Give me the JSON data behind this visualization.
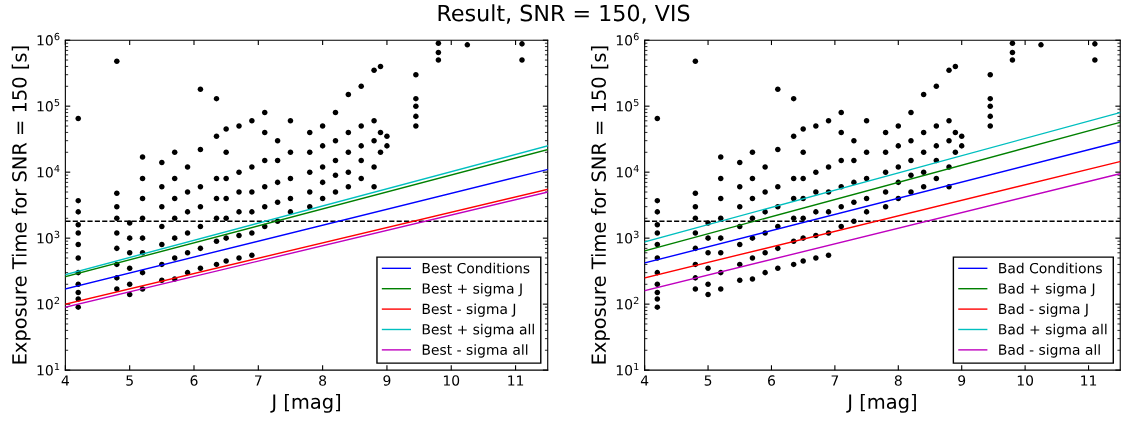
{
  "chart_data": [
    {
      "type": "scatter",
      "title": "Result, SNR = 150, VIS",
      "xlabel": "J [mag]",
      "ylabel": "Exposure Time for SNR = 150 [s]",
      "log": "y",
      "xlim": [
        4,
        11.5
      ],
      "ylim": [
        10,
        1000000
      ],
      "xticks": [
        4,
        5,
        6,
        7,
        8,
        9,
        10,
        11
      ],
      "yticks": [
        {
          "value": 10,
          "label": "10$^{1}$"
        },
        {
          "value": 100,
          "label": "10$^{2}$"
        },
        {
          "value": 1000,
          "label": "10$^{3}$"
        },
        {
          "value": 10000,
          "label": "10$^{4}$"
        },
        {
          "value": 100000,
          "label": "10$^{5}$"
        },
        {
          "value": 1000000,
          "label": "10$^{6}$"
        }
      ],
      "grid": false,
      "legend": "bottom right",
      "ref_lines": [
        {
          "axis": "y",
          "value": 1800,
          "color": "#000000",
          "line_style": "dashed"
        }
      ],
      "series": [
        {
          "type": "scatter",
          "color": "#000000",
          "marker": "circle",
          "x": [
            4.2,
            4.2,
            4.2,
            4.2,
            4.2,
            4.2,
            4.2,
            4.2,
            4.2,
            4.2,
            4.2,
            4.2,
            4.8,
            4.8,
            4.8,
            4.8,
            4.8,
            4.8,
            4.8,
            4.8,
            4.8,
            5.0,
            5.0,
            5.0,
            5.0,
            5.0,
            5.0,
            5.2,
            5.2,
            5.2,
            5.2,
            5.2,
            5.2,
            5.2,
            5.2,
            5.5,
            5.5,
            5.5,
            5.5,
            5.5,
            5.5,
            5.5,
            5.7,
            5.7,
            5.7,
            5.7,
            5.7,
            5.7,
            5.7,
            5.9,
            5.9,
            5.9,
            5.9,
            5.9,
            5.9,
            6.1,
            6.1,
            6.1,
            6.1,
            6.1,
            6.1,
            6.1,
            6.35,
            6.35,
            6.35,
            6.35,
            6.35,
            6.35,
            6.35,
            6.5,
            6.5,
            6.5,
            6.5,
            6.5,
            6.5,
            6.5,
            6.7,
            6.7,
            6.7,
            6.7,
            6.7,
            6.7,
            6.9,
            6.9,
            6.9,
            6.9,
            6.9,
            6.9,
            7.1,
            7.1,
            7.1,
            7.1,
            7.1,
            7.1,
            7.3,
            7.3,
            7.3,
            7.3,
            7.3,
            7.5,
            7.5,
            7.5,
            7.5,
            7.5,
            7.8,
            7.8,
            7.8,
            7.8,
            7.8,
            8.0,
            8.0,
            8.0,
            8.0,
            8.0,
            8.2,
            8.2,
            8.2,
            8.2,
            8.2,
            8.4,
            8.4,
            8.4,
            8.4,
            8.4,
            8.6,
            8.6,
            8.6,
            8.6,
            8.6,
            8.8,
            8.8,
            8.8,
            8.8,
            8.8,
            8.9,
            8.9,
            8.9,
            9.0,
            9.0,
            9.45,
            9.45,
            9.45,
            9.45,
            9.45,
            9.8,
            9.8,
            9.8,
            10.25,
            11.1,
            11.1
          ],
          "values": [
            90,
            120,
            150,
            200,
            300,
            500,
            800,
            1200,
            1600,
            2500,
            3700,
            65000,
            170,
            250,
            400,
            700,
            1200,
            2000,
            3000,
            4800,
            480000,
            140,
            200,
            350,
            600,
            1000,
            1700,
            170,
            300,
            600,
            1000,
            2000,
            4000,
            8000,
            17000,
            230,
            400,
            800,
            1500,
            3000,
            6000,
            14000,
            240,
            500,
            1000,
            2000,
            4000,
            8000,
            20000,
            300,
            600,
            1200,
            2500,
            5000,
            12000,
            350,
            700,
            1500,
            3000,
            6000,
            22000,
            180000,
            130000,
            400,
            900,
            2000,
            4000,
            8000,
            35000,
            450,
            1000,
            2000,
            4000,
            8000,
            20000,
            45000,
            500,
            1100,
            2500,
            5000,
            10000,
            50000,
            550,
            1200,
            2500,
            5000,
            12000,
            60000,
            1500,
            3000,
            6000,
            15000,
            40000,
            80000,
            1800,
            3500,
            7000,
            15000,
            30000,
            2500,
            4000,
            8000,
            20000,
            60000,
            3000,
            5000,
            10000,
            20000,
            40000,
            4000,
            7000,
            12000,
            25000,
            50000,
            5000,
            9000,
            15000,
            30000,
            80000,
            6000,
            10000,
            20000,
            40000,
            150000,
            8000,
            15000,
            25000,
            50000,
            200000,
            6000,
            12000,
            30000,
            60000,
            350000,
            20000,
            40000,
            400000,
            25000,
            35000,
            50000,
            70000,
            100000,
            130000,
            300000,
            500000,
            650000,
            900000,
            850000,
            500000,
            880000
          ]
        },
        {
          "type": "line",
          "name": "Best Conditions",
          "color": "#0000ff",
          "x": [
            4,
            11.5
          ],
          "values": [
            170,
            11000
          ]
        },
        {
          "type": "line",
          "name": "Best + sigma J",
          "color": "#008000",
          "x": [
            4,
            11.5
          ],
          "values": [
            260,
            22000
          ]
        },
        {
          "type": "line",
          "name": "Best - sigma J",
          "color": "#ff0000",
          "x": [
            4,
            11.5
          ],
          "values": [
            100,
            5500
          ]
        },
        {
          "type": "line",
          "name": "Best + sigma all",
          "color": "#00bfbf",
          "x": [
            4,
            11.5
          ],
          "values": [
            280,
            25000
          ]
        },
        {
          "type": "line",
          "name": "Best - sigma all",
          "color": "#bf00bf",
          "x": [
            4,
            11.5
          ],
          "values": [
            90,
            5000
          ]
        }
      ]
    },
    {
      "type": "scatter",
      "xlabel": "J [mag]",
      "ylabel": "Exposure Time for SNR = 150 [s]",
      "log": "y",
      "xlim": [
        4,
        11.5
      ],
      "ylim": [
        10,
        1000000
      ],
      "xticks": [
        4,
        5,
        6,
        7,
        8,
        9,
        10,
        11
      ],
      "yticks": [
        {
          "value": 10,
          "label": "10$^{1}$"
        },
        {
          "value": 100,
          "label": "10$^{2}$"
        },
        {
          "value": 1000,
          "label": "10$^{3}$"
        },
        {
          "value": 10000,
          "label": "10$^{4}$"
        },
        {
          "value": 100000,
          "label": "10$^{5}$"
        },
        {
          "value": 1000000,
          "label": "10$^{6}$"
        }
      ],
      "grid": false,
      "legend": "bottom right",
      "ref_lines": [
        {
          "axis": "y",
          "value": 1800,
          "color": "#000000",
          "line_style": "dashed"
        }
      ],
      "series": [
        {
          "type": "scatter",
          "color": "#000000",
          "marker": "circle",
          "x": [
            4.2,
            4.2,
            4.2,
            4.2,
            4.2,
            4.2,
            4.2,
            4.2,
            4.2,
            4.2,
            4.2,
            4.2,
            4.8,
            4.8,
            4.8,
            4.8,
            4.8,
            4.8,
            4.8,
            4.8,
            4.8,
            5.0,
            5.0,
            5.0,
            5.0,
            5.0,
            5.0,
            5.2,
            5.2,
            5.2,
            5.2,
            5.2,
            5.2,
            5.2,
            5.2,
            5.5,
            5.5,
            5.5,
            5.5,
            5.5,
            5.5,
            5.5,
            5.7,
            5.7,
            5.7,
            5.7,
            5.7,
            5.7,
            5.7,
            5.9,
            5.9,
            5.9,
            5.9,
            5.9,
            5.9,
            6.1,
            6.1,
            6.1,
            6.1,
            6.1,
            6.1,
            6.1,
            6.35,
            6.35,
            6.35,
            6.35,
            6.35,
            6.35,
            6.35,
            6.5,
            6.5,
            6.5,
            6.5,
            6.5,
            6.5,
            6.5,
            6.7,
            6.7,
            6.7,
            6.7,
            6.7,
            6.7,
            6.9,
            6.9,
            6.9,
            6.9,
            6.9,
            6.9,
            7.1,
            7.1,
            7.1,
            7.1,
            7.1,
            7.1,
            7.3,
            7.3,
            7.3,
            7.3,
            7.3,
            7.5,
            7.5,
            7.5,
            7.5,
            7.5,
            7.8,
            7.8,
            7.8,
            7.8,
            7.8,
            8.0,
            8.0,
            8.0,
            8.0,
            8.0,
            8.2,
            8.2,
            8.2,
            8.2,
            8.2,
            8.4,
            8.4,
            8.4,
            8.4,
            8.4,
            8.6,
            8.6,
            8.6,
            8.6,
            8.6,
            8.8,
            8.8,
            8.8,
            8.8,
            8.8,
            8.9,
            8.9,
            8.9,
            9.0,
            9.0,
            9.45,
            9.45,
            9.45,
            9.45,
            9.45,
            9.8,
            9.8,
            9.8,
            10.25,
            11.1,
            11.1
          ],
          "values": [
            90,
            120,
            150,
            200,
            300,
            500,
            800,
            1200,
            1600,
            2500,
            3700,
            65000,
            170,
            250,
            400,
            700,
            1200,
            2000,
            3000,
            4800,
            480000,
            140,
            200,
            350,
            600,
            1000,
            1700,
            170,
            300,
            600,
            1000,
            2000,
            4000,
            8000,
            17000,
            230,
            400,
            800,
            1500,
            3000,
            6000,
            14000,
            240,
            500,
            1000,
            2000,
            4000,
            8000,
            20000,
            300,
            600,
            1200,
            2500,
            5000,
            12000,
            350,
            700,
            1500,
            3000,
            6000,
            22000,
            180000,
            130000,
            400,
            900,
            2000,
            4000,
            8000,
            35000,
            450,
            1000,
            2000,
            4000,
            8000,
            20000,
            45000,
            500,
            1100,
            2500,
            5000,
            10000,
            50000,
            550,
            1200,
            2500,
            5000,
            12000,
            60000,
            1500,
            3000,
            6000,
            15000,
            40000,
            80000,
            1800,
            3500,
            7000,
            15000,
            30000,
            2500,
            4000,
            8000,
            20000,
            60000,
            3000,
            5000,
            10000,
            20000,
            40000,
            4000,
            7000,
            12000,
            25000,
            50000,
            5000,
            9000,
            15000,
            30000,
            80000,
            6000,
            10000,
            20000,
            40000,
            150000,
            8000,
            15000,
            25000,
            50000,
            200000,
            6000,
            12000,
            30000,
            60000,
            350000,
            20000,
            40000,
            400000,
            25000,
            35000,
            50000,
            70000,
            100000,
            130000,
            300000,
            500000,
            650000,
            900000,
            850000,
            500000,
            880000
          ]
        },
        {
          "type": "line",
          "name": "Bad Conditions",
          "color": "#0000ff",
          "x": [
            4,
            11.5
          ],
          "values": [
            420,
            29000
          ]
        },
        {
          "type": "line",
          "name": "Bad + sigma J",
          "color": "#008000",
          "x": [
            4,
            11.5
          ],
          "values": [
            640,
            57000
          ]
        },
        {
          "type": "line",
          "name": "Bad - sigma J",
          "color": "#ff0000",
          "x": [
            4,
            11.5
          ],
          "values": [
            250,
            14500
          ]
        },
        {
          "type": "line",
          "name": "Bad + sigma all",
          "color": "#00bfbf",
          "x": [
            4,
            11.5
          ],
          "values": [
            880,
            80000
          ]
        },
        {
          "type": "line",
          "name": "Bad - sigma all",
          "color": "#bf00bf",
          "x": [
            4,
            11.5
          ],
          "values": [
            160,
            9500
          ]
        }
      ]
    }
  ]
}
